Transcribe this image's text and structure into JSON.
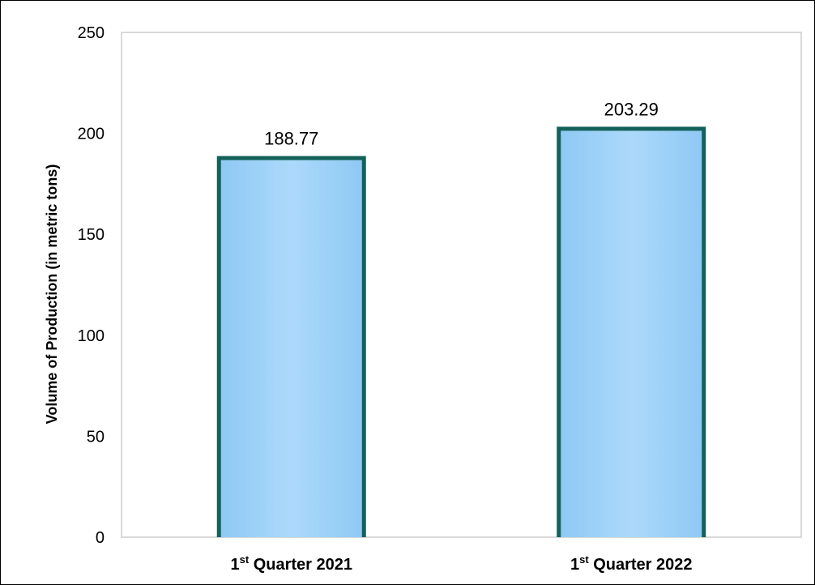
{
  "chart_data": {
    "type": "bar",
    "title": "",
    "xlabel": "",
    "ylabel": "Volume of Production (in metric tons)",
    "categories": [
      {
        "num": "1",
        "sup": "st",
        "rest": " Quarter 2021"
      },
      {
        "num": "1",
        "sup": "st",
        "rest": " Quarter 2022"
      }
    ],
    "values": [
      188.77,
      203.29
    ],
    "value_labels": [
      "188.77",
      "203.29"
    ],
    "ylim": [
      0,
      250
    ],
    "yticks": [
      0,
      50,
      100,
      150,
      200,
      250
    ],
    "grid": false,
    "legend": "none",
    "colors": {
      "bar_fill": "#a4d4f8",
      "bar_fill_center": "#b4dcfa",
      "bar_edge": "#14615a",
      "axis": "#d9d9d9"
    }
  }
}
